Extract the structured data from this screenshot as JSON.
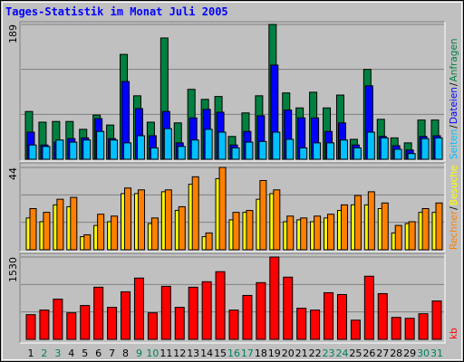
{
  "chart_data": {
    "type": "bar",
    "title": "Tages-Statistik im Monat Juli 2005",
    "separator": "/",
    "categories": [
      "1",
      "2",
      "3",
      "4",
      "5",
      "6",
      "7",
      "8",
      "9",
      "10",
      "11",
      "12",
      "13",
      "14",
      "15",
      "16",
      "17",
      "18",
      "19",
      "20",
      "21",
      "22",
      "23",
      "24",
      "25",
      "26",
      "27",
      "28",
      "29",
      "30",
      "31"
    ],
    "category_colors": [
      "#000000",
      "#008060",
      "#008060",
      "#000000",
      "#000000",
      "#000000",
      "#000000",
      "#000000",
      "#008060",
      "#008060",
      "#000000",
      "#000000",
      "#000000",
      "#000000",
      "#000000",
      "#008060",
      "#008060",
      "#000000",
      "#000000",
      "#000000",
      "#000000",
      "#000000",
      "#008060",
      "#008060",
      "#000000",
      "#000000",
      "#000000",
      "#000000",
      "#000000",
      "#008060",
      "#008060"
    ],
    "panels": [
      {
        "ylim": [
          0,
          189
        ],
        "yticks": [
          189
        ],
        "series": [
          {
            "name": "Anfragen",
            "color": "#008040",
            "values": [
              67,
              52,
              53,
              53,
              42,
              62,
              48,
              147,
              89,
              52,
              170,
              51,
              98,
              84,
              88,
              32,
              65,
              89,
              189,
              93,
              72,
              94,
              72,
              90,
              28,
              126,
              56,
              30,
              23,
              55,
              55
            ]
          },
          {
            "name": "Dateien",
            "color": "#0000ff",
            "values": [
              38,
              20,
              24,
              29,
              30,
              57,
              29,
              109,
              71,
              33,
              67,
              23,
              58,
              70,
              66,
              20,
              39,
              61,
              132,
              69,
              58,
              58,
              39,
              51,
              20,
              103,
              32,
              19,
              13,
              32,
              33
            ]
          },
          {
            "name": "Seiten",
            "color": "#00c0ff",
            "values": [
              20,
              18,
              27,
              24,
              27,
              39,
              27,
              23,
              33,
              16,
              43,
              18,
              27,
              42,
              38,
              16,
              24,
              25,
              38,
              28,
              16,
              23,
              23,
              27,
              16,
              38,
              30,
              14,
              8,
              29,
              30
            ]
          }
        ]
      },
      {
        "ylim": [
          0,
          44
        ],
        "yticks": [
          44
        ],
        "series": [
          {
            "name": "Besuche",
            "color": "#ffff00",
            "values": [
              17,
              15,
              24,
              23,
              7,
              13,
              15,
              30,
              30,
              14,
              31,
              21,
              35,
              7,
              38,
              16,
              20,
              27,
              30,
              15,
              16,
              15,
              17,
              21,
              24,
              24,
              22,
              9,
              14,
              20,
              20
            ]
          },
          {
            "name": "Rechner",
            "color": "#ff8000",
            "values": [
              22,
              20,
              27,
              28,
              8,
              19,
              18,
              33,
              32,
              17,
              32,
              23,
              39,
              9,
              44,
              20,
              21,
              37,
              32,
              18,
              17,
              18,
              19,
              24,
              29,
              31,
              25,
              13,
              15,
              22,
              25
            ]
          }
        ]
      },
      {
        "ylim": [
          0,
          1530
        ],
        "yticks": [
          1530
        ],
        "series": [
          {
            "name": "kb",
            "color": "#ff0000",
            "values": [
              459,
              544,
              748,
              493,
              629,
              969,
              595,
              884,
              1139,
              493,
              986,
              595,
              969,
              1071,
              1258,
              544,
              816,
              1054,
              1530,
              1156,
              578,
              544,
              867,
              833,
              357,
              1173,
              850,
              408,
              391,
              476,
              714
            ]
          }
        ]
      }
    ]
  }
}
